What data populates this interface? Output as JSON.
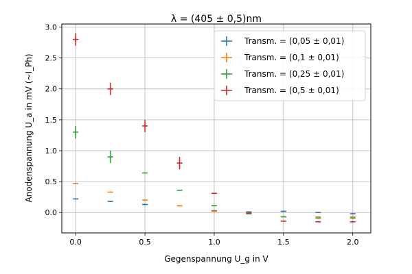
{
  "chart_data": {
    "type": "scatter",
    "title": "λ = (405 ± 0,5)nm",
    "xlabel": "Gegenspannung U_g in V",
    "ylabel": "Anodenspannung U_a in mV (~I_Ph)",
    "xlim": [
      -0.1,
      2.13
    ],
    "ylim": [
      -0.33,
      3.05
    ],
    "x_ticks": [
      0.0,
      0.5,
      1.0,
      1.5,
      2.0
    ],
    "x_tick_labels": [
      "0.0",
      "0.5",
      "1.0",
      "1.5",
      "2.0"
    ],
    "y_ticks": [
      0.0,
      0.5,
      1.0,
      1.5,
      2.0,
      2.5,
      3.0
    ],
    "y_tick_labels": [
      "0.0",
      "0.5",
      "1.0",
      "1.5",
      "2.0",
      "2.5",
      "3.0"
    ],
    "grid": true,
    "legend_position": "top-right",
    "x_error": 0.02,
    "series": [
      {
        "name": "Transm. = (0,05 ± 0,01)",
        "color": "#1f77b4",
        "x": [
          0.0,
          0.25,
          0.5,
          0.75,
          1.0,
          1.25,
          1.5,
          1.75,
          2.0
        ],
        "y": [
          0.22,
          0.18,
          0.13,
          0.11,
          0.03,
          0.01,
          0.02,
          0.0,
          -0.02
        ],
        "yerr": [
          0.01,
          0.01,
          0.01,
          0.01,
          0.01,
          0.01,
          0.01,
          0.01,
          0.01
        ]
      },
      {
        "name": "Transm. = (0,1 ± 0,01)",
        "color": "#ff7f0e",
        "x": [
          0.0,
          0.25,
          0.5,
          0.75,
          1.0,
          1.25,
          1.5,
          1.75,
          2.0
        ],
        "y": [
          0.47,
          0.33,
          0.2,
          0.11,
          0.02,
          -0.02,
          -0.07,
          -0.07,
          -0.07
        ],
        "yerr": [
          0.01,
          0.01,
          0.01,
          0.01,
          0.01,
          0.01,
          0.01,
          0.01,
          0.01
        ]
      },
      {
        "name": "Transm. = (0,25 ± 0,01)",
        "color": "#2ca02c",
        "x": [
          0.0,
          0.25,
          0.5,
          0.75,
          1.0,
          1.25,
          1.5,
          1.75,
          2.0
        ],
        "y": [
          1.3,
          0.9,
          0.64,
          0.36,
          0.11,
          -0.02,
          -0.07,
          -0.09,
          -0.09
        ],
        "yerr": [
          0.1,
          0.1,
          0.01,
          0.01,
          0.01,
          0.01,
          0.01,
          0.01,
          0.01
        ]
      },
      {
        "name": "Transm. = (0,5 ± 0,01)",
        "color": "#d62728",
        "x": [
          0.0,
          0.25,
          0.5,
          0.75,
          1.0,
          1.25,
          1.5,
          1.75,
          2.0
        ],
        "y": [
          2.8,
          2.0,
          1.4,
          0.8,
          0.31,
          -0.01,
          -0.14,
          -0.15,
          -0.15
        ],
        "yerr": [
          0.1,
          0.1,
          0.1,
          0.1,
          0.01,
          0.01,
          0.01,
          0.01,
          0.01
        ]
      }
    ]
  }
}
